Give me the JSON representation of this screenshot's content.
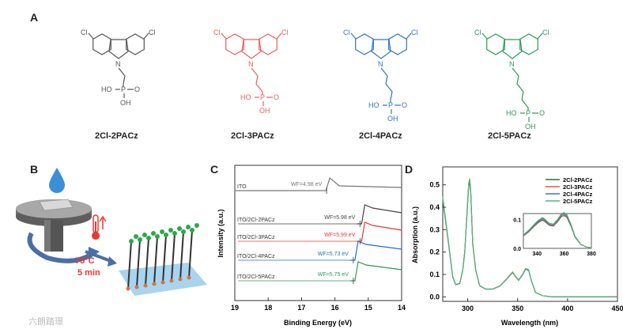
{
  "panels": {
    "A": "A",
    "B": "B",
    "C": "C",
    "D": "D"
  },
  "molecules": [
    {
      "name": "2Cl-2PACz",
      "color": "#555555",
      "chain": 2
    },
    {
      "name": "2Cl-3PACz",
      "color": "#e8605c",
      "chain": 3
    },
    {
      "name": "2Cl-4PACz",
      "color": "#2f74c8",
      "chain": 4
    },
    {
      "name": "2Cl-5PACz",
      "color": "#2e9a55",
      "chain": 5
    }
  ],
  "atoms": {
    "cl": "Cl",
    "n": "N",
    "p": "P",
    "o": "O",
    "ho": "HO",
    "oh": "OH"
  },
  "panel_b": {
    "temperature": "75°C",
    "time": "5 min",
    "droplet_color": "#3a8fd8",
    "label_color": "#e53935"
  },
  "chart_data": [
    {
      "type": "line",
      "xlabel": "Binding Energy (eV)",
      "ylabel": "Intensity (a.u.)",
      "xlim": [
        19,
        14
      ],
      "x_ticks": [
        19,
        18,
        17,
        16,
        15,
        14
      ],
      "series": [
        {
          "name": "ITO",
          "wf": "WF=4.98 eV",
          "cutoff": 16.2,
          "color": "#777777"
        },
        {
          "name": "ITO/2Cl-2PACz",
          "wf": "WF=5.98 eV",
          "cutoff": 15.2,
          "color": "#444444"
        },
        {
          "name": "ITO/2Cl-3PACz",
          "wf": "WF=5.99 eV",
          "cutoff": 15.2,
          "color": "#e53935"
        },
        {
          "name": "ITO/2Cl-4PACz",
          "wf": "WF=5.73 eV",
          "cutoff": 15.4,
          "color": "#1e6fd0"
        },
        {
          "name": "ITO/2Cl-5PACz",
          "wf": "WF=5.75 eV",
          "cutoff": 15.4,
          "color": "#2e9a55"
        }
      ]
    },
    {
      "type": "line",
      "xlabel": "Wavelength (nm)",
      "ylabel": "Absorption (a.u.)",
      "xlim": [
        275,
        450
      ],
      "ylim": [
        -0.02,
        0.58
      ],
      "x_ticks": [
        300,
        350,
        400,
        450
      ],
      "y_ticks": [
        "0.0",
        "0.1",
        "0.2",
        "0.3",
        "0.4",
        "0.5"
      ],
      "legend_position": "top-right",
      "series": [
        {
          "name": "2Cl-2PACz",
          "color": "#2f6e3a"
        },
        {
          "name": "2Cl-3PACz",
          "color": "#e0565a"
        },
        {
          "name": "2Cl-4PACz",
          "color": "#3a78c8"
        },
        {
          "name": "2Cl-5PACz",
          "color": "#4fba6e"
        }
      ],
      "x": [
        275,
        280,
        285,
        288,
        292,
        295,
        297,
        299,
        301,
        302,
        303,
        305,
        308,
        312,
        318,
        325,
        332,
        338,
        342,
        345,
        348,
        351,
        355,
        358,
        361,
        364,
        368,
        375,
        385,
        400,
        420,
        450
      ],
      "y": [
        0.44,
        0.27,
        0.09,
        0.055,
        0.06,
        0.12,
        0.2,
        0.35,
        0.5,
        0.52,
        0.47,
        0.24,
        0.12,
        0.05,
        0.035,
        0.035,
        0.048,
        0.075,
        0.095,
        0.11,
        0.09,
        0.075,
        0.1,
        0.125,
        0.12,
        0.07,
        0.02,
        0.005,
        0.0,
        0.0,
        0.0,
        0.0
      ],
      "inset": {
        "xlim": [
          330,
          380
        ],
        "ylim": [
          0.0,
          0.12
        ],
        "x_ticks": [
          340,
          360,
          380
        ],
        "y_ticks": [
          "0.0",
          "0.1"
        ],
        "x": [
          330,
          334,
          338,
          341,
          344,
          346,
          349,
          352,
          355,
          358,
          360,
          362,
          365,
          368,
          372,
          376,
          380
        ],
        "y": [
          0.045,
          0.06,
          0.08,
          0.093,
          0.102,
          0.096,
          0.083,
          0.08,
          0.095,
          0.115,
          0.118,
          0.112,
          0.08,
          0.04,
          0.015,
          0.005,
          0.002
        ]
      }
    }
  ],
  "watermark": "六朗踏璟"
}
